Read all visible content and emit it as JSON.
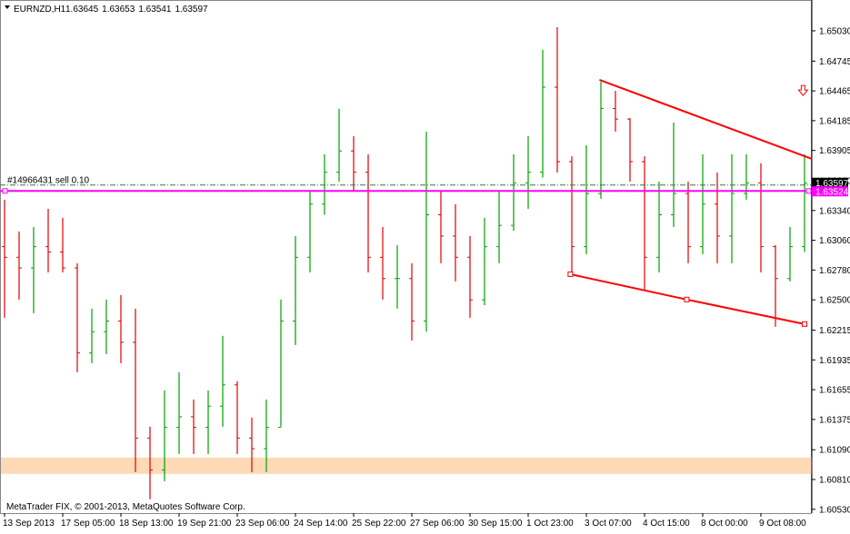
{
  "chart_data": {
    "type": "ohlc",
    "symbol": "EURNZD,H1",
    "header_values": [
      "1.63645",
      "1.63653",
      "1.63541",
      "1.63597"
    ],
    "copyright": "MetaTrader FIX, © 2001-2013, MetaQuotes Software Corp.",
    "up_color": "#00a000",
    "down_color": "#e00000",
    "ylim": [
      1.60494,
      1.6532
    ],
    "yticks": [
      {
        "value": 1.6503,
        "label": "1.65030"
      },
      {
        "value": 1.64745,
        "label": "1.64745"
      },
      {
        "value": 1.64465,
        "label": "1.64465"
      },
      {
        "value": 1.64185,
        "label": "1.64185"
      },
      {
        "value": 1.63905,
        "label": "1.63905"
      },
      {
        "value": 1.6362,
        "label": "1.63620"
      },
      {
        "value": 1.6334,
        "label": "1.63340"
      },
      {
        "value": 1.6306,
        "label": "1.63060"
      },
      {
        "value": 1.6278,
        "label": "1.62780"
      },
      {
        "value": 1.625,
        "label": "1.62500"
      },
      {
        "value": 1.62215,
        "label": "1.62215"
      },
      {
        "value": 1.61935,
        "label": "1.61935"
      },
      {
        "value": 1.61655,
        "label": "1.61655"
      },
      {
        "value": 1.61375,
        "label": "1.61375"
      },
      {
        "value": 1.6109,
        "label": "1.61090"
      },
      {
        "value": 1.6081,
        "label": "1.60810"
      },
      {
        "value": 1.6053,
        "label": "1.60530"
      }
    ],
    "xticks": [
      {
        "value": 0,
        "label": "13 Sep 2013"
      },
      {
        "value": 4,
        "label": "17 Sep 05:00"
      },
      {
        "value": 8,
        "label": "18 Sep 13:00"
      },
      {
        "value": 12,
        "label": "19 Sep 21:00"
      },
      {
        "value": 16,
        "label": "23 Sep 06:00"
      },
      {
        "value": 20,
        "label": "24 Sep 14:00"
      },
      {
        "value": 24,
        "label": "25 Sep 22:00"
      },
      {
        "value": 28,
        "label": "27 Sep 06:00"
      },
      {
        "value": 32,
        "label": "30 Sep 15:00"
      },
      {
        "value": 36,
        "label": "1 Oct 23:00"
      },
      {
        "value": 40,
        "label": "3 Oct 07:00"
      },
      {
        "value": 44,
        "label": "4 Oct 15:00"
      },
      {
        "value": 48,
        "label": "8 Oct 00:00"
      },
      {
        "value": 52,
        "label": "9 Oct 08:00"
      }
    ],
    "open": [
      1.63,
      1.629,
      1.628,
      1.63,
      1.6295,
      1.628,
      1.62,
      1.622,
      1.623,
      1.621,
      1.612,
      1.609,
      1.613,
      1.614,
      1.613,
      1.615,
      1.617,
      1.612,
      1.611,
      1.613,
      1.623,
      1.629,
      1.634,
      1.637,
      1.639,
      1.637,
      1.629,
      1.627,
      1.627,
      1.623,
      1.633,
      1.631,
      1.629,
      1.625,
      1.63,
      1.632,
      1.636,
      1.637,
      1.645,
      1.638,
      1.63,
      1.635,
      1.643,
      1.642,
      1.638,
      1.629,
      1.633,
      1.635,
      1.63,
      1.634,
      1.631,
      1.635,
      1.636,
      1.63,
      1.627,
      1.63
    ],
    "high": [
      1.63442,
      1.63143,
      1.63185,
      1.63356,
      1.63271,
      1.62844,
      1.62417,
      1.62502,
      1.62545,
      1.62417,
      1.61307,
      1.61648,
      1.61819,
      1.61563,
      1.61648,
      1.62161,
      1.61734,
      1.61392,
      1.61563,
      1.62502,
      1.631,
      1.63527,
      1.63869,
      1.64296,
      1.64039,
      1.63869,
      1.63185,
      1.63015,
      1.62844,
      1.64082,
      1.63527,
      1.63399,
      1.631,
      1.63271,
      1.63527,
      1.63869,
      1.64039,
      1.64851,
      1.65064,
      1.6385,
      1.63954,
      1.64552,
      1.64466,
      1.6421,
      1.6385,
      1.63612,
      1.64167,
      1.63612,
      1.63869,
      1.63698,
      1.63869,
      1.63869,
      1.63783,
      1.63015,
      1.63185,
      1.63869
    ],
    "low": [
      1.62331,
      1.62502,
      1.62374,
      1.62758,
      1.62758,
      1.61819,
      1.61904,
      1.6199,
      1.61904,
      1.6088,
      1.60624,
      1.60794,
      1.6105,
      1.6105,
      1.6105,
      1.61307,
      1.6105,
      1.6088,
      1.6088,
      1.61307,
      1.62075,
      1.62758,
      1.633,
      1.63612,
      1.63527,
      1.62758,
      1.62502,
      1.62417,
      1.62118,
      1.622,
      1.62844,
      1.62673,
      1.62331,
      1.6245,
      1.62844,
      1.6315,
      1.63356,
      1.6365,
      1.63698,
      1.62758,
      1.62929,
      1.6345,
      1.64082,
      1.63612,
      1.62588,
      1.62758,
      1.63185,
      1.62844,
      1.62929,
      1.62844,
      1.62844,
      1.63442,
      1.62758,
      1.62246,
      1.62673,
      1.6295
    ],
    "close": [
      1.629,
      1.628,
      1.63,
      1.6295,
      1.628,
      1.62,
      1.622,
      1.623,
      1.621,
      1.612,
      1.609,
      1.613,
      1.614,
      1.613,
      1.615,
      1.617,
      1.612,
      1.611,
      1.613,
      1.623,
      1.629,
      1.634,
      1.637,
      1.639,
      1.637,
      1.629,
      1.627,
      1.627,
      1.623,
      1.633,
      1.631,
      1.629,
      1.625,
      1.63,
      1.632,
      1.636,
      1.637,
      1.645,
      1.638,
      1.63,
      1.635,
      1.643,
      1.642,
      1.638,
      1.629,
      1.633,
      1.635,
      1.63,
      1.634,
      1.631,
      1.635,
      1.636,
      1.63,
      1.627,
      1.63,
      1.63597
    ],
    "bid": {
      "value": 1.63597,
      "label": "1.63597",
      "color": "#2e7d32"
    },
    "order": {
      "value": 1.63524,
      "label": "1.63524",
      "text": "#14966431 sell 0.10",
      "color": "#ff00ff"
    },
    "trendlines": [
      {
        "x": [
          40.9,
          55.5
        ],
        "y": [
          1.64569,
          1.63826
        ],
        "color": "#ff0000"
      },
      {
        "x": [
          38.9,
          46.9,
          55
        ],
        "y": [
          1.62741,
          1.62503,
          1.62272
        ],
        "color": "#ff0000"
      }
    ],
    "zone": {
      "y": [
        1.60863,
        1.61016
      ],
      "color": "#fdd9b5"
    },
    "arrow": {
      "x": 54.9,
      "y": 1.64465,
      "color": "#ff0000"
    }
  }
}
